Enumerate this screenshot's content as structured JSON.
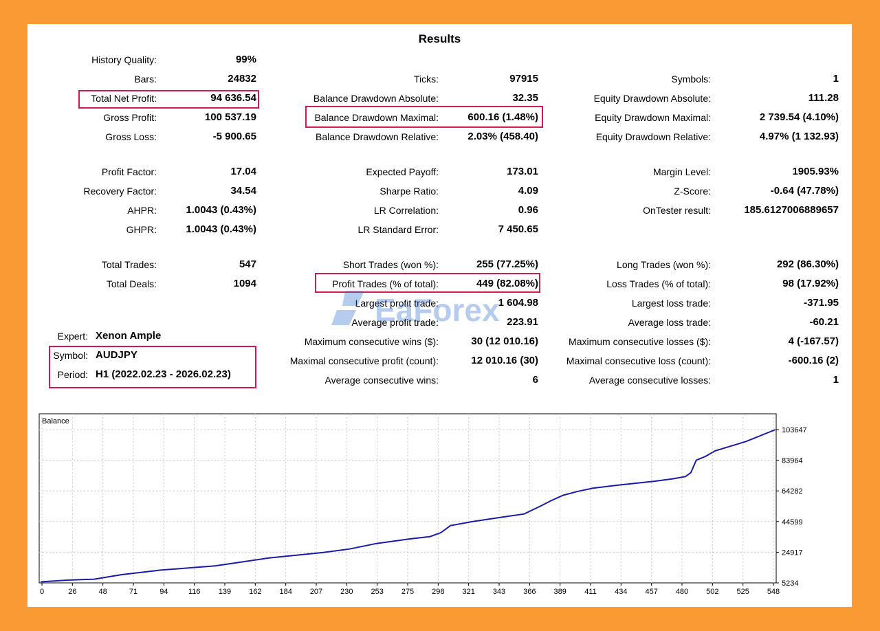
{
  "results": {
    "title": "Results",
    "col1": [
      {
        "label": "History Quality:",
        "value": "99%"
      },
      {
        "label": "Bars:",
        "value": "24832"
      },
      {
        "label": "Total Net Profit:",
        "value": "94 636.54"
      },
      {
        "label": "Gross Profit:",
        "value": "100 537.19"
      },
      {
        "label": "Gross Loss:",
        "value": "-5 900.65"
      },
      {
        "label": "Profit Factor:",
        "value": "17.04"
      },
      {
        "label": "Recovery Factor:",
        "value": "34.54"
      },
      {
        "label": "AHPR:",
        "value": "1.0043 (0.43%)"
      },
      {
        "label": "GHPR:",
        "value": "1.0043 (0.43%)"
      },
      {
        "label": "Total Trades:",
        "value": "547"
      },
      {
        "label": "Total Deals:",
        "value": "1094"
      }
    ],
    "col2": [
      {
        "label": "Ticks:",
        "value": "97915"
      },
      {
        "label": "Balance Drawdown Absolute:",
        "value": "32.35"
      },
      {
        "label": "Balance Drawdown Maximal:",
        "value": "600.16 (1.48%)"
      },
      {
        "label": "Balance Drawdown Relative:",
        "value": "2.03% (458.40)"
      },
      {
        "label": "Expected Payoff:",
        "value": "173.01"
      },
      {
        "label": "Sharpe Ratio:",
        "value": "4.09"
      },
      {
        "label": "LR Correlation:",
        "value": "0.96"
      },
      {
        "label": "LR Standard Error:",
        "value": "7 450.65"
      },
      {
        "label": "Short Trades (won %):",
        "value": "255 (77.25%)"
      },
      {
        "label": "Profit Trades (% of total):",
        "value": "449 (82.08%)"
      },
      {
        "label": "Largest profit trade:",
        "value": "1 604.98"
      },
      {
        "label": "Average profit trade:",
        "value": "223.91"
      },
      {
        "label": "Maximum consecutive wins ($):",
        "value": "30 (12 010.16)"
      },
      {
        "label": "Maximal consecutive profit (count):",
        "value": "12 010.16 (30)"
      },
      {
        "label": "Average consecutive wins:",
        "value": "6"
      }
    ],
    "col3": [
      {
        "label": "Symbols:",
        "value": "1"
      },
      {
        "label": "Equity Drawdown Absolute:",
        "value": "111.28"
      },
      {
        "label": "Equity Drawdown Maximal:",
        "value": "2 739.54 (4.10%)"
      },
      {
        "label": "Equity Drawdown Relative:",
        "value": "4.97% (1 132.93)"
      },
      {
        "label": "Margin Level:",
        "value": "1905.93%"
      },
      {
        "label": "Z-Score:",
        "value": "-0.64 (47.78%)"
      },
      {
        "label": "OnTester result:",
        "value": "185.6127006889657"
      },
      {
        "label": "Long Trades (won %):",
        "value": "292 (86.30%)"
      },
      {
        "label": "Loss Trades (% of total):",
        "value": "98 (17.92%)"
      },
      {
        "label": "Largest loss trade:",
        "value": "-371.95"
      },
      {
        "label": "Average loss trade:",
        "value": "-60.21"
      },
      {
        "label": "Maximum consecutive losses ($):",
        "value": "4 (-167.57)"
      },
      {
        "label": "Maximal consecutive loss (count):",
        "value": "-600.16 (2)"
      },
      {
        "label": "Average consecutive losses:",
        "value": "1"
      }
    ],
    "expert": {
      "label": "Expert:",
      "value": "Xenon Ample"
    },
    "symbol": {
      "label": "Symbol:",
      "value": "AUDJPY"
    },
    "period": {
      "label": "Period:",
      "value": "H1 (2022.02.23 - 2026.02.23)"
    }
  },
  "watermark": {
    "text": "EaForex",
    "color": "#2f6fd0"
  },
  "colors": {
    "frame": "#fa9a33",
    "highlight": "#d11a4f",
    "line": "#1a1aa8",
    "grid": "#c8c8c8"
  },
  "chart_data": {
    "type": "line",
    "title": "Balance",
    "x_ticks": [
      "0",
      "26",
      "48",
      "71",
      "94",
      "116",
      "139",
      "162",
      "184",
      "207",
      "230",
      "253",
      "275",
      "298",
      "321",
      "343",
      "366",
      "389",
      "411",
      "434",
      "457",
      "480",
      "502",
      "525",
      "548"
    ],
    "y_ticks": [
      "103647",
      "83964",
      "64282",
      "44599",
      "24917",
      "5234"
    ],
    "ylim": [
      5234,
      103647
    ],
    "xlim": [
      0,
      547
    ],
    "grid": true,
    "series": [
      {
        "x": [
          0,
          20,
          40,
          60,
          90,
          110,
          130,
          170,
          210,
          230,
          250,
          275,
          290,
          298,
          305,
          321,
          340,
          360,
          366,
          372,
          380,
          389,
          400,
          411,
          430,
          457,
          470,
          480,
          484,
          488,
          495,
          502,
          525,
          547
        ],
        "y": [
          5900,
          7000,
          7600,
          10500,
          13500,
          14800,
          16200,
          21200,
          24700,
          27000,
          30500,
          33500,
          35000,
          37500,
          42000,
          44500,
          47000,
          49500,
          52000,
          54500,
          58000,
          61500,
          64000,
          66000,
          68000,
          70500,
          72000,
          73500,
          76000,
          84000,
          86500,
          90000,
          96000,
          103647
        ]
      }
    ]
  }
}
